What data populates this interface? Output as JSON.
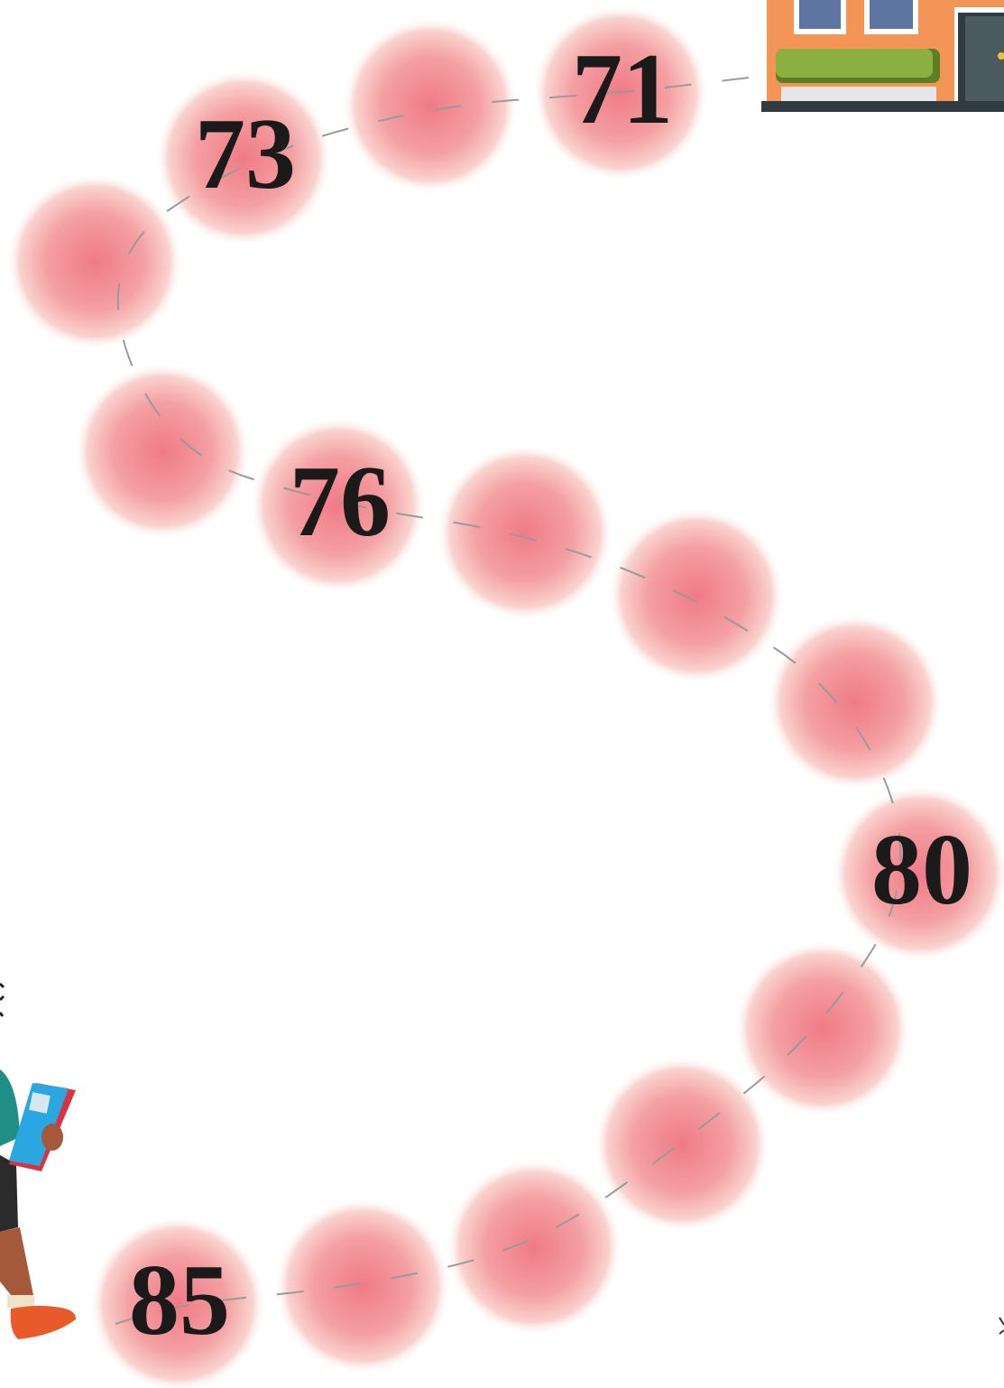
{
  "numbers": [
    "71",
    "73",
    "76",
    "80",
    "85"
  ]
}
